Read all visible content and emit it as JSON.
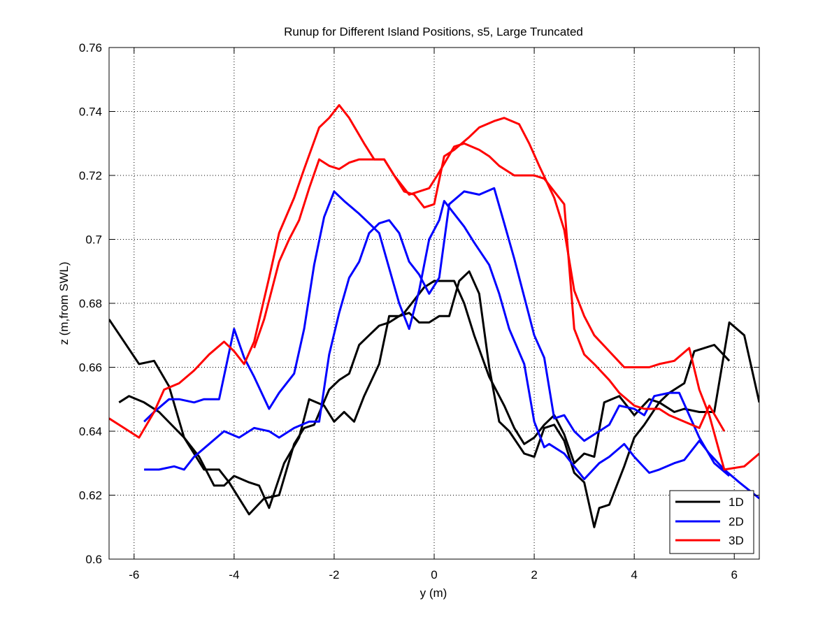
{
  "chart_data": {
    "type": "line",
    "title": "Runup for Different Island Positions, s5, Large Truncated",
    "xlabel": "y (m)",
    "ylabel": "z (m,from SWL)",
    "xlim": [
      -6.5,
      6.5
    ],
    "ylim": [
      0.6,
      0.76
    ],
    "xticks": [
      -6,
      -4,
      -2,
      0,
      2,
      4,
      6
    ],
    "yticks": [
      0.6,
      0.62,
      0.64,
      0.66,
      0.68,
      0.7,
      0.72,
      0.74,
      0.76
    ],
    "xtick_labels": [
      "-6",
      "-4",
      "-2",
      "0",
      "2",
      "4",
      "6"
    ],
    "ytick_labels": [
      "0.6",
      "0.62",
      "0.64",
      "0.66",
      "0.68",
      "0.7",
      "0.72",
      "0.74",
      "0.76"
    ],
    "grid": true,
    "legend_position": "bottom-right",
    "series": [
      {
        "name": "1D",
        "color": "#000000",
        "x": [
          -6.5,
          -6.2,
          -5.9,
          -5.6,
          -5.3,
          -5.0,
          -4.7,
          -4.4,
          -4.2,
          -4.0,
          -3.7,
          -3.5,
          -3.3,
          -3.0,
          -2.7,
          -2.5,
          -2.2,
          -2.0,
          -1.8,
          -1.6,
          -1.4,
          -1.1,
          -0.9,
          -0.7,
          -0.5,
          -0.3,
          -0.1,
          0.1,
          0.3,
          0.5,
          0.7,
          0.9,
          1.1,
          1.3,
          1.5,
          1.8,
          2.0,
          2.2,
          2.4,
          2.6,
          2.8,
          3.0,
          3.2,
          3.3,
          3.5,
          3.8,
          4.0,
          4.2,
          4.5,
          4.7,
          5.0,
          5.2,
          5.6,
          5.9
        ],
        "y": [
          0.675,
          0.668,
          0.661,
          0.662,
          0.654,
          0.638,
          0.632,
          0.623,
          0.623,
          0.626,
          0.624,
          0.623,
          0.616,
          0.63,
          0.638,
          0.65,
          0.648,
          0.643,
          0.646,
          0.643,
          0.651,
          0.661,
          0.676,
          0.676,
          0.677,
          0.674,
          0.674,
          0.676,
          0.676,
          0.687,
          0.69,
          0.683,
          0.66,
          0.643,
          0.64,
          0.633,
          0.632,
          0.641,
          0.642,
          0.637,
          0.627,
          0.624,
          0.61,
          0.616,
          0.617,
          0.629,
          0.638,
          0.642,
          0.649,
          0.652,
          0.655,
          0.665,
          0.667,
          0.662
        ]
      },
      {
        "name": "1D",
        "color": "#000000",
        "x": [
          -6.3,
          -6.1,
          -5.8,
          -5.5,
          -5.0,
          -4.8,
          -4.6,
          -4.3,
          -4.1,
          -3.9,
          -3.7,
          -3.4,
          -3.1,
          -2.8,
          -2.6,
          -2.4,
          -2.1,
          -1.9,
          -1.7,
          -1.5,
          -1.3,
          -1.1,
          -0.9,
          -0.6,
          -0.4,
          -0.2,
          0.0,
          0.2,
          0.4,
          0.6,
          0.8,
          1.1,
          1.4,
          1.6,
          1.8,
          2.0,
          2.2,
          2.4,
          2.6,
          2.8,
          3.0,
          3.2,
          3.4,
          3.7,
          4.0,
          4.3,
          4.5,
          4.8,
          5.0,
          5.3,
          5.6,
          5.9,
          6.2,
          6.5
        ],
        "y": [
          0.649,
          0.651,
          0.649,
          0.646,
          0.638,
          0.633,
          0.628,
          0.628,
          0.624,
          0.619,
          0.614,
          0.619,
          0.62,
          0.636,
          0.641,
          0.642,
          0.653,
          0.656,
          0.658,
          0.667,
          0.67,
          0.673,
          0.674,
          0.677,
          0.681,
          0.685,
          0.687,
          0.687,
          0.687,
          0.68,
          0.67,
          0.657,
          0.648,
          0.641,
          0.636,
          0.638,
          0.642,
          0.645,
          0.639,
          0.63,
          0.633,
          0.632,
          0.649,
          0.651,
          0.645,
          0.65,
          0.649,
          0.646,
          0.647,
          0.646,
          0.646,
          0.674,
          0.67,
          0.649
        ]
      },
      {
        "name": "2D",
        "color": "#0000ff",
        "x": [
          -5.8,
          -5.6,
          -5.3,
          -5.1,
          -4.8,
          -4.6,
          -4.3,
          -4.0,
          -3.8,
          -3.6,
          -3.3,
          -3.1,
          -2.8,
          -2.6,
          -2.4,
          -2.2,
          -2.0,
          -1.8,
          -1.5,
          -1.3,
          -1.1,
          -0.9,
          -0.7,
          -0.5,
          -0.3,
          -0.1,
          0.1,
          0.2,
          0.4,
          0.6,
          0.8,
          1.1,
          1.3,
          1.5,
          1.8,
          2.0,
          2.2,
          2.3,
          2.6,
          2.8,
          3.0,
          3.3,
          3.5,
          3.8,
          4.0,
          4.3,
          4.5,
          4.8,
          5.0,
          5.3,
          5.5,
          5.8,
          6.1,
          6.5
        ],
        "y": [
          0.643,
          0.646,
          0.65,
          0.65,
          0.649,
          0.65,
          0.65,
          0.672,
          0.663,
          0.657,
          0.647,
          0.652,
          0.658,
          0.672,
          0.692,
          0.707,
          0.715,
          0.712,
          0.708,
          0.705,
          0.702,
          0.691,
          0.68,
          0.672,
          0.684,
          0.7,
          0.706,
          0.712,
          0.708,
          0.704,
          0.699,
          0.692,
          0.683,
          0.672,
          0.661,
          0.643,
          0.635,
          0.636,
          0.633,
          0.629,
          0.625,
          0.63,
          0.632,
          0.636,
          0.632,
          0.627,
          0.628,
          0.63,
          0.631,
          0.637,
          0.633,
          0.628,
          0.624,
          0.619
        ]
      },
      {
        "name": "2D",
        "color": "#0000ff",
        "x": [
          -5.8,
          -5.5,
          -5.2,
          -5.0,
          -4.8,
          -4.5,
          -4.2,
          -3.9,
          -3.6,
          -3.3,
          -3.1,
          -2.8,
          -2.5,
          -2.3,
          -2.1,
          -1.9,
          -1.7,
          -1.5,
          -1.3,
          -1.1,
          -0.9,
          -0.7,
          -0.5,
          -0.3,
          -0.1,
          0.1,
          0.3,
          0.6,
          0.9,
          1.2,
          1.4,
          1.6,
          1.8,
          2.0,
          2.2,
          2.4,
          2.6,
          2.8,
          3.0,
          3.3,
          3.5,
          3.7,
          4.0,
          4.2,
          4.4,
          4.7,
          4.9,
          5.1,
          5.3,
          5.6,
          5.9
        ],
        "y": [
          0.628,
          0.628,
          0.629,
          0.628,
          0.632,
          0.636,
          0.64,
          0.638,
          0.641,
          0.64,
          0.638,
          0.641,
          0.643,
          0.643,
          0.664,
          0.677,
          0.688,
          0.693,
          0.702,
          0.705,
          0.706,
          0.702,
          0.693,
          0.689,
          0.683,
          0.688,
          0.711,
          0.715,
          0.714,
          0.716,
          0.705,
          0.694,
          0.682,
          0.67,
          0.663,
          0.644,
          0.645,
          0.64,
          0.637,
          0.64,
          0.642,
          0.648,
          0.647,
          0.645,
          0.651,
          0.652,
          0.652,
          0.645,
          0.638,
          0.63,
          0.626
        ]
      },
      {
        "name": "3D",
        "color": "#ff0000",
        "x": [
          -6.5,
          -6.2,
          -5.9,
          -5.6,
          -5.4,
          -5.1,
          -4.8,
          -4.5,
          -4.2,
          -4.0,
          -3.8,
          -3.6,
          -3.3,
          -3.1,
          -2.8,
          -2.6,
          -2.3,
          -2.1,
          -1.9,
          -1.7,
          -1.4,
          -1.2,
          -1.0,
          -0.8,
          -0.6,
          -0.4,
          -0.2,
          0.0,
          0.2,
          0.4,
          0.7,
          0.9,
          1.2,
          1.4,
          1.7,
          1.9,
          2.1,
          2.4,
          2.6,
          2.8,
          3.0,
          3.2,
          3.5,
          3.8,
          4.0,
          4.3,
          4.5,
          4.8,
          5.1,
          5.3,
          5.5,
          5.8,
          6.2,
          6.5
        ],
        "y": [
          0.644,
          0.641,
          0.638,
          0.646,
          0.653,
          0.655,
          0.659,
          0.664,
          0.668,
          0.665,
          0.661,
          0.668,
          0.688,
          0.702,
          0.713,
          0.722,
          0.735,
          0.738,
          0.742,
          0.738,
          0.73,
          0.725,
          0.725,
          0.72,
          0.715,
          0.714,
          0.71,
          0.711,
          0.726,
          0.728,
          0.732,
          0.735,
          0.737,
          0.738,
          0.736,
          0.73,
          0.723,
          0.713,
          0.703,
          0.684,
          0.676,
          0.67,
          0.665,
          0.66,
          0.66,
          0.66,
          0.661,
          0.662,
          0.666,
          0.653,
          0.645,
          0.628,
          0.629,
          0.633
        ]
      },
      {
        "name": "3D",
        "color": "#ff0000",
        "x": [
          -3.6,
          -3.4,
          -3.1,
          -2.9,
          -2.7,
          -2.5,
          -2.3,
          -2.1,
          -1.9,
          -1.7,
          -1.5,
          -1.2,
          -1.0,
          -0.8,
          -0.5,
          -0.3,
          -0.1,
          0.1,
          0.4,
          0.6,
          0.9,
          1.1,
          1.3,
          1.6,
          1.8,
          2.0,
          2.2,
          2.4,
          2.6,
          2.8,
          3.0,
          3.2,
          3.5,
          3.7,
          4.0,
          4.2,
          4.5,
          4.7,
          5.0,
          5.3,
          5.5,
          5.8
        ],
        "y": [
          0.666,
          0.675,
          0.693,
          0.7,
          0.706,
          0.716,
          0.725,
          0.723,
          0.722,
          0.724,
          0.725,
          0.725,
          0.725,
          0.72,
          0.714,
          0.715,
          0.716,
          0.721,
          0.729,
          0.73,
          0.728,
          0.726,
          0.723,
          0.72,
          0.72,
          0.72,
          0.719,
          0.715,
          0.711,
          0.672,
          0.664,
          0.661,
          0.656,
          0.652,
          0.648,
          0.647,
          0.647,
          0.645,
          0.643,
          0.641,
          0.648,
          0.64
        ]
      }
    ],
    "legend": [
      {
        "label": "1D",
        "color": "#000000"
      },
      {
        "label": "2D",
        "color": "#0000ff"
      },
      {
        "label": "3D",
        "color": "#ff0000"
      }
    ]
  }
}
